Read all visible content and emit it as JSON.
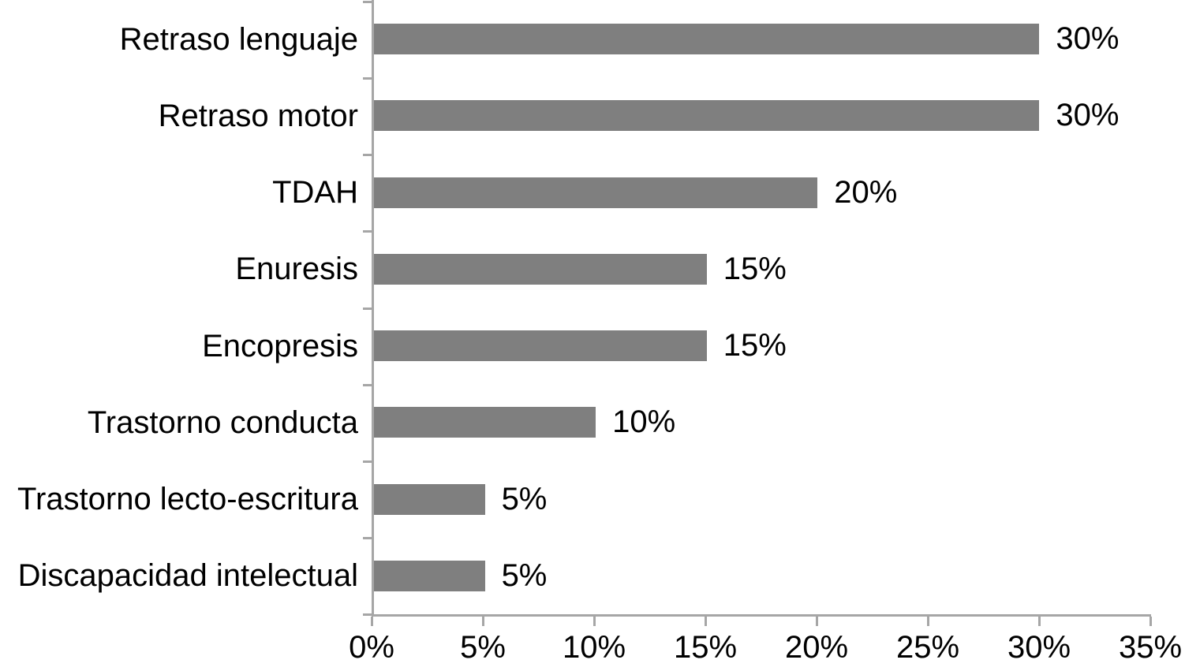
{
  "chart_data": {
    "type": "bar",
    "orientation": "horizontal",
    "title": "",
    "xlabel": "",
    "ylabel": "",
    "categories": [
      "Retraso lenguaje",
      "Retraso motor",
      "TDAH",
      "Enuresis",
      "Encopresis",
      "Trastorno conducta",
      "Trastorno lecto-escritura",
      "Discapacidad intelectual"
    ],
    "values": [
      30,
      30,
      20,
      15,
      15,
      10,
      5,
      5
    ],
    "value_labels": [
      "30%",
      "30%",
      "20%",
      "15%",
      "15%",
      "10%",
      "5%",
      "5%"
    ],
    "x_ticks": [
      0,
      5,
      10,
      15,
      20,
      25,
      30,
      35
    ],
    "x_tick_labels": [
      "0%",
      "5%",
      "10%",
      "15%",
      "20%",
      "25%",
      "30%",
      "35%"
    ],
    "xlim": [
      0,
      35
    ],
    "grid": false,
    "legend_position": "none",
    "colors": {
      "bar": "#7f7f7f",
      "axis": "#a6a6a6",
      "text": "#000000",
      "background": "#ffffff"
    }
  }
}
